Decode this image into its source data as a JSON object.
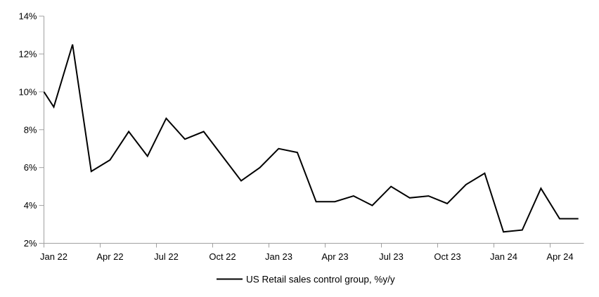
{
  "chart_data": {
    "type": "line",
    "title": "",
    "xlabel": "",
    "ylabel": "",
    "ylim": [
      2,
      14
    ],
    "y_tick_step": 2,
    "grid": false,
    "legend_position": "bottom-center",
    "axis_color": "#a0a0a0",
    "line_color": "#000000",
    "left_edge_entry_pct": 10.0,
    "categories": [
      "Jan 22",
      "Feb 22",
      "Mar 22",
      "Apr 22",
      "May 22",
      "Jun 22",
      "Jul 22",
      "Aug 22",
      "Sep 22",
      "Oct 22",
      "Nov 22",
      "Dec 22",
      "Jan 23",
      "Feb 23",
      "Mar 23",
      "Apr 23",
      "May 23",
      "Jun 23",
      "Jul 23",
      "Aug 23",
      "Sep 23",
      "Oct 23",
      "Nov 23",
      "Dec 23",
      "Jan 24",
      "Feb 24",
      "Mar 24",
      "Apr 24",
      "May 24"
    ],
    "series": [
      {
        "name": "US Retail sales control group, %y/y",
        "color": "#000000",
        "values": [
          9.2,
          12.5,
          5.8,
          6.4,
          7.9,
          6.6,
          8.6,
          7.5,
          7.9,
          6.6,
          5.3,
          6.0,
          7.0,
          6.8,
          4.2,
          4.2,
          4.5,
          4.0,
          5.0,
          4.4,
          4.5,
          4.1,
          5.1,
          5.7,
          2.6,
          2.7,
          4.9,
          3.3,
          3.3
        ]
      }
    ],
    "x_tick_labels": [
      "Jan 22",
      "Apr 22",
      "Jul 22",
      "Oct 22",
      "Jan 23",
      "Apr 23",
      "Jul 23",
      "Oct 23",
      "Jan 24",
      "Apr 24"
    ],
    "y_tick_labels": [
      "2%",
      "4%",
      "6%",
      "8%",
      "10%",
      "12%",
      "14%"
    ]
  }
}
